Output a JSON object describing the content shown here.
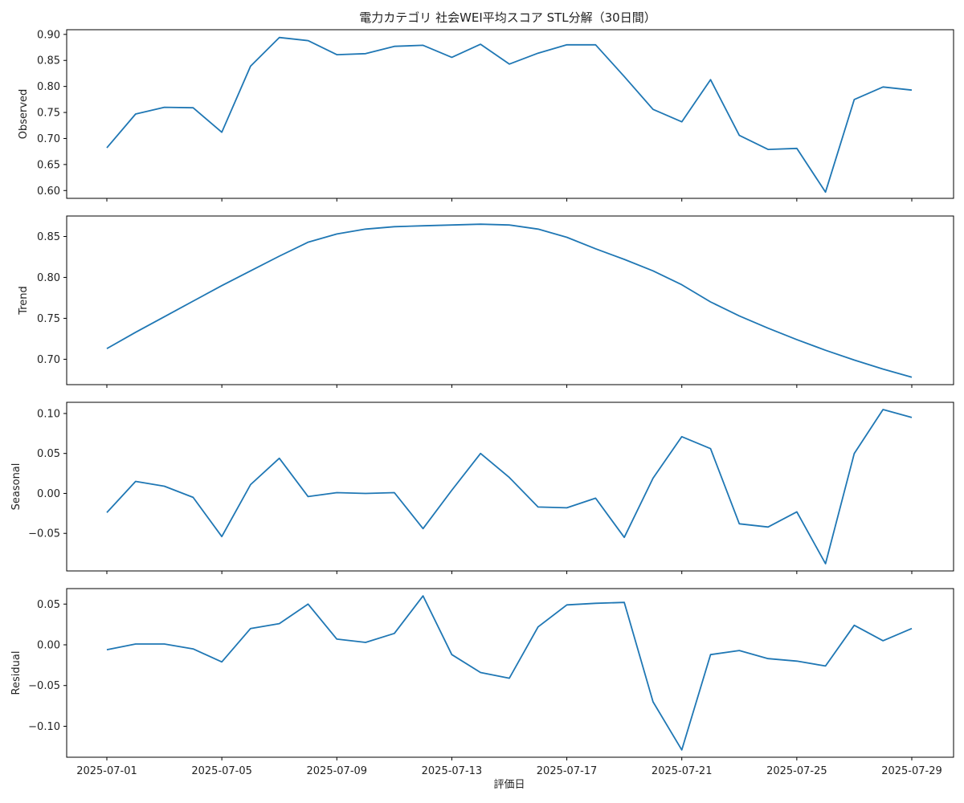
{
  "chart_data": {
    "type": "line",
    "title": "電力カテゴリ 社会WEI平均スコア STL分解（30日間）",
    "xlabel": "評価日",
    "x": [
      "2025-07-01",
      "2025-07-02",
      "2025-07-03",
      "2025-07-04",
      "2025-07-05",
      "2025-07-06",
      "2025-07-07",
      "2025-07-08",
      "2025-07-09",
      "2025-07-10",
      "2025-07-11",
      "2025-07-12",
      "2025-07-13",
      "2025-07-14",
      "2025-07-15",
      "2025-07-16",
      "2025-07-17",
      "2025-07-18",
      "2025-07-19",
      "2025-07-20",
      "2025-07-21",
      "2025-07-22",
      "2025-07-23",
      "2025-07-24",
      "2025-07-25",
      "2025-07-26",
      "2025-07-27",
      "2025-07-28",
      "2025-07-29"
    ],
    "xticks": [
      "2025-07-01",
      "2025-07-05",
      "2025-07-09",
      "2025-07-13",
      "2025-07-17",
      "2025-07-21",
      "2025-07-25",
      "2025-07-29"
    ],
    "line_color": "#1f77b4",
    "panels": [
      {
        "ylabel": "Observed",
        "ylim": [
          0.585,
          0.909
        ],
        "yticks": [
          0.6,
          0.65,
          0.7,
          0.75,
          0.8,
          0.85,
          0.9
        ],
        "tick_decimals": 2,
        "values": [
          0.682,
          0.747,
          0.76,
          0.759,
          0.712,
          0.839,
          0.894,
          0.888,
          0.861,
          0.863,
          0.877,
          0.879,
          0.856,
          0.881,
          0.843,
          0.864,
          0.88,
          0.88,
          0.819,
          0.756,
          0.732,
          0.813,
          0.706,
          0.679,
          0.681,
          0.597,
          0.775,
          0.799,
          0.793
        ]
      },
      {
        "ylabel": "Trend",
        "ylim": [
          0.669,
          0.875
        ],
        "yticks": [
          0.7,
          0.75,
          0.8,
          0.85
        ],
        "tick_decimals": 2,
        "values": [
          0.713,
          0.733,
          0.752,
          0.771,
          0.79,
          0.808,
          0.826,
          0.843,
          0.853,
          0.859,
          0.862,
          0.863,
          0.864,
          0.865,
          0.864,
          0.859,
          0.849,
          0.835,
          0.822,
          0.808,
          0.791,
          0.77,
          0.753,
          0.738,
          0.724,
          0.711,
          0.699,
          0.688,
          0.678
        ]
      },
      {
        "ylabel": "Seasonal",
        "ylim": [
          -0.097,
          0.114
        ],
        "yticks": [
          -0.05,
          0.0,
          0.05,
          0.1
        ],
        "tick_decimals": 2,
        "values": [
          -0.024,
          0.015,
          0.009,
          -0.005,
          -0.054,
          0.011,
          0.044,
          -0.004,
          0.001,
          0.0,
          0.001,
          -0.044,
          0.004,
          0.05,
          0.02,
          -0.017,
          -0.018,
          -0.006,
          -0.055,
          0.019,
          0.071,
          0.056,
          -0.038,
          -0.042,
          -0.023,
          -0.088,
          0.05,
          0.105,
          0.095
        ]
      },
      {
        "ylabel": "Residual",
        "ylim": [
          -0.138,
          0.069
        ],
        "yticks": [
          -0.1,
          -0.05,
          0.0,
          0.05
        ],
        "tick_decimals": 2,
        "values": [
          -0.006,
          0.001,
          0.001,
          -0.005,
          -0.021,
          0.02,
          0.026,
          0.05,
          0.007,
          0.003,
          0.014,
          0.06,
          -0.012,
          -0.034,
          -0.041,
          0.022,
          0.049,
          0.051,
          0.052,
          -0.07,
          -0.129,
          -0.012,
          -0.007,
          -0.017,
          -0.02,
          -0.026,
          0.024,
          0.005,
          0.02
        ]
      }
    ]
  }
}
